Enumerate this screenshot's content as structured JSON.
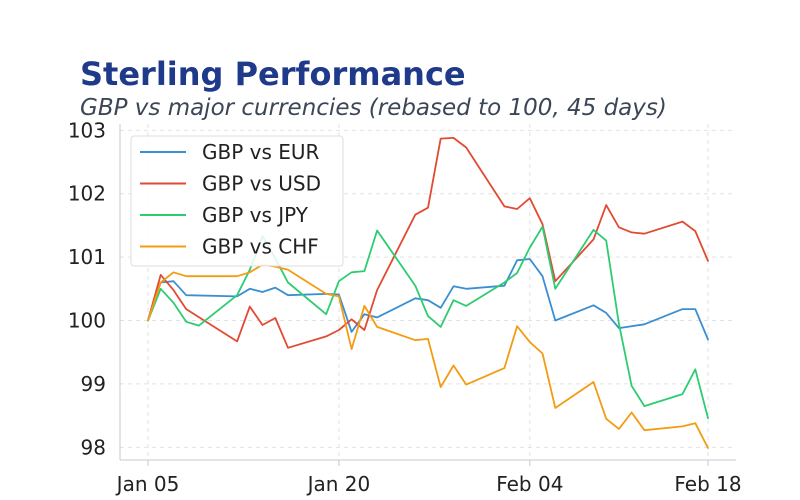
{
  "chart_data": {
    "type": "line",
    "title": "Sterling Performance",
    "subtitle": "GBP vs major currencies (rebased to 100, 45 days)",
    "xlabel": "",
    "ylabel": "",
    "x_ticks": [
      "Jan 05",
      "Jan 20",
      "Feb 04",
      "Feb 18"
    ],
    "x_domain": [
      "2025-01-05",
      "2025-02-18"
    ],
    "ylim": [
      97.8,
      103.1
    ],
    "y_ticks": [
      98,
      99,
      100,
      101,
      102,
      103
    ],
    "grid": true,
    "legend_position": "top-left",
    "series": [
      {
        "name": "GBP vs EUR",
        "color": "#3b8fd1",
        "points": [
          [
            "2025-01-05",
            100.0
          ],
          [
            "2025-01-06",
            100.6
          ],
          [
            "2025-01-07",
            100.62
          ],
          [
            "2025-01-08",
            100.4
          ],
          [
            "2025-01-12",
            100.38
          ],
          [
            "2025-01-13",
            100.5
          ],
          [
            "2025-01-14",
            100.45
          ],
          [
            "2025-01-15",
            100.52
          ],
          [
            "2025-01-16",
            100.4
          ],
          [
            "2025-01-19",
            100.42
          ],
          [
            "2025-01-20",
            100.41
          ],
          [
            "2025-01-21",
            99.82
          ],
          [
            "2025-01-22",
            100.1
          ],
          [
            "2025-01-23",
            100.05
          ],
          [
            "2025-01-26",
            100.35
          ],
          [
            "2025-01-27",
            100.32
          ],
          [
            "2025-01-28",
            100.2
          ],
          [
            "2025-01-29",
            100.54
          ],
          [
            "2025-01-30",
            100.5
          ],
          [
            "2025-02-02",
            100.55
          ],
          [
            "2025-02-03",
            100.95
          ],
          [
            "2025-02-04",
            100.97
          ],
          [
            "2025-02-05",
            100.7
          ],
          [
            "2025-02-06",
            100.0
          ],
          [
            "2025-02-09",
            100.24
          ],
          [
            "2025-02-10",
            100.12
          ],
          [
            "2025-02-11",
            99.88
          ],
          [
            "2025-02-13",
            99.94
          ],
          [
            "2025-02-16",
            100.18
          ],
          [
            "2025-02-17",
            100.18
          ],
          [
            "2025-02-18",
            99.7
          ]
        ]
      },
      {
        "name": "GBP vs USD",
        "color": "#e24a33",
        "points": [
          [
            "2025-01-05",
            100.0
          ],
          [
            "2025-01-06",
            100.72
          ],
          [
            "2025-01-07",
            100.48
          ],
          [
            "2025-01-08",
            100.18
          ],
          [
            "2025-01-12",
            99.67
          ],
          [
            "2025-01-13",
            100.22
          ],
          [
            "2025-01-14",
            99.93
          ],
          [
            "2025-01-15",
            100.04
          ],
          [
            "2025-01-16",
            99.57
          ],
          [
            "2025-01-19",
            99.75
          ],
          [
            "2025-01-20",
            99.85
          ],
          [
            "2025-01-21",
            100.02
          ],
          [
            "2025-01-22",
            99.85
          ],
          [
            "2025-01-23",
            100.48
          ],
          [
            "2025-01-26",
            101.67
          ],
          [
            "2025-01-27",
            101.78
          ],
          [
            "2025-01-28",
            102.87
          ],
          [
            "2025-01-29",
            102.88
          ],
          [
            "2025-01-30",
            102.73
          ],
          [
            "2025-02-02",
            101.8
          ],
          [
            "2025-02-03",
            101.76
          ],
          [
            "2025-02-04",
            101.93
          ],
          [
            "2025-02-05",
            101.52
          ],
          [
            "2025-02-06",
            100.62
          ],
          [
            "2025-02-09",
            101.28
          ],
          [
            "2025-02-10",
            101.82
          ],
          [
            "2025-02-11",
            101.47
          ],
          [
            "2025-02-12",
            101.39
          ],
          [
            "2025-02-13",
            101.37
          ],
          [
            "2025-02-16",
            101.56
          ],
          [
            "2025-02-17",
            101.41
          ],
          [
            "2025-02-18",
            100.94
          ]
        ]
      },
      {
        "name": "GBP vs JPY",
        "color": "#2ecc71",
        "points": [
          [
            "2025-01-05",
            100.0
          ],
          [
            "2025-01-06",
            100.5
          ],
          [
            "2025-01-07",
            100.28
          ],
          [
            "2025-01-08",
            99.98
          ],
          [
            "2025-01-09",
            99.92
          ],
          [
            "2025-01-12",
            100.4
          ],
          [
            "2025-01-13",
            100.8
          ],
          [
            "2025-01-14",
            101.33
          ],
          [
            "2025-01-15",
            100.98
          ],
          [
            "2025-01-16",
            100.6
          ],
          [
            "2025-01-19",
            100.1
          ],
          [
            "2025-01-20",
            100.62
          ],
          [
            "2025-01-21",
            100.76
          ],
          [
            "2025-01-22",
            100.78
          ],
          [
            "2025-01-23",
            101.42
          ],
          [
            "2025-01-26",
            100.55
          ],
          [
            "2025-01-27",
            100.07
          ],
          [
            "2025-01-28",
            99.9
          ],
          [
            "2025-01-29",
            100.32
          ],
          [
            "2025-01-30",
            100.23
          ],
          [
            "2025-02-02",
            100.6
          ],
          [
            "2025-02-03",
            100.75
          ],
          [
            "2025-02-04",
            101.15
          ],
          [
            "2025-02-05",
            101.48
          ],
          [
            "2025-02-06",
            100.5
          ],
          [
            "2025-02-09",
            101.43
          ],
          [
            "2025-02-10",
            101.26
          ],
          [
            "2025-02-11",
            99.95
          ],
          [
            "2025-02-12",
            98.97
          ],
          [
            "2025-02-13",
            98.65
          ],
          [
            "2025-02-16",
            98.84
          ],
          [
            "2025-02-17",
            99.23
          ],
          [
            "2025-02-18",
            98.46
          ]
        ]
      },
      {
        "name": "GBP vs CHF",
        "color": "#f39c12",
        "points": [
          [
            "2025-01-05",
            100.0
          ],
          [
            "2025-01-06",
            100.6
          ],
          [
            "2025-01-07",
            100.76
          ],
          [
            "2025-01-08",
            100.7
          ],
          [
            "2025-01-12",
            100.7
          ],
          [
            "2025-01-13",
            100.76
          ],
          [
            "2025-01-14",
            100.88
          ],
          [
            "2025-01-15",
            100.85
          ],
          [
            "2025-01-16",
            100.8
          ],
          [
            "2025-01-19",
            100.42
          ],
          [
            "2025-01-20",
            100.38
          ],
          [
            "2025-01-21",
            99.55
          ],
          [
            "2025-01-22",
            100.23
          ],
          [
            "2025-01-23",
            99.9
          ],
          [
            "2025-01-26",
            99.69
          ],
          [
            "2025-01-27",
            99.71
          ],
          [
            "2025-01-28",
            98.95
          ],
          [
            "2025-01-29",
            99.29
          ],
          [
            "2025-01-30",
            98.99
          ],
          [
            "2025-02-02",
            99.25
          ],
          [
            "2025-02-03",
            99.91
          ],
          [
            "2025-02-04",
            99.66
          ],
          [
            "2025-02-05",
            99.48
          ],
          [
            "2025-02-06",
            98.62
          ],
          [
            "2025-02-09",
            99.03
          ],
          [
            "2025-02-10",
            98.45
          ],
          [
            "2025-02-11",
            98.29
          ],
          [
            "2025-02-12",
            98.55
          ],
          [
            "2025-02-13",
            98.27
          ],
          [
            "2025-02-16",
            98.33
          ],
          [
            "2025-02-17",
            98.38
          ],
          [
            "2025-02-18",
            97.99
          ]
        ]
      }
    ]
  }
}
